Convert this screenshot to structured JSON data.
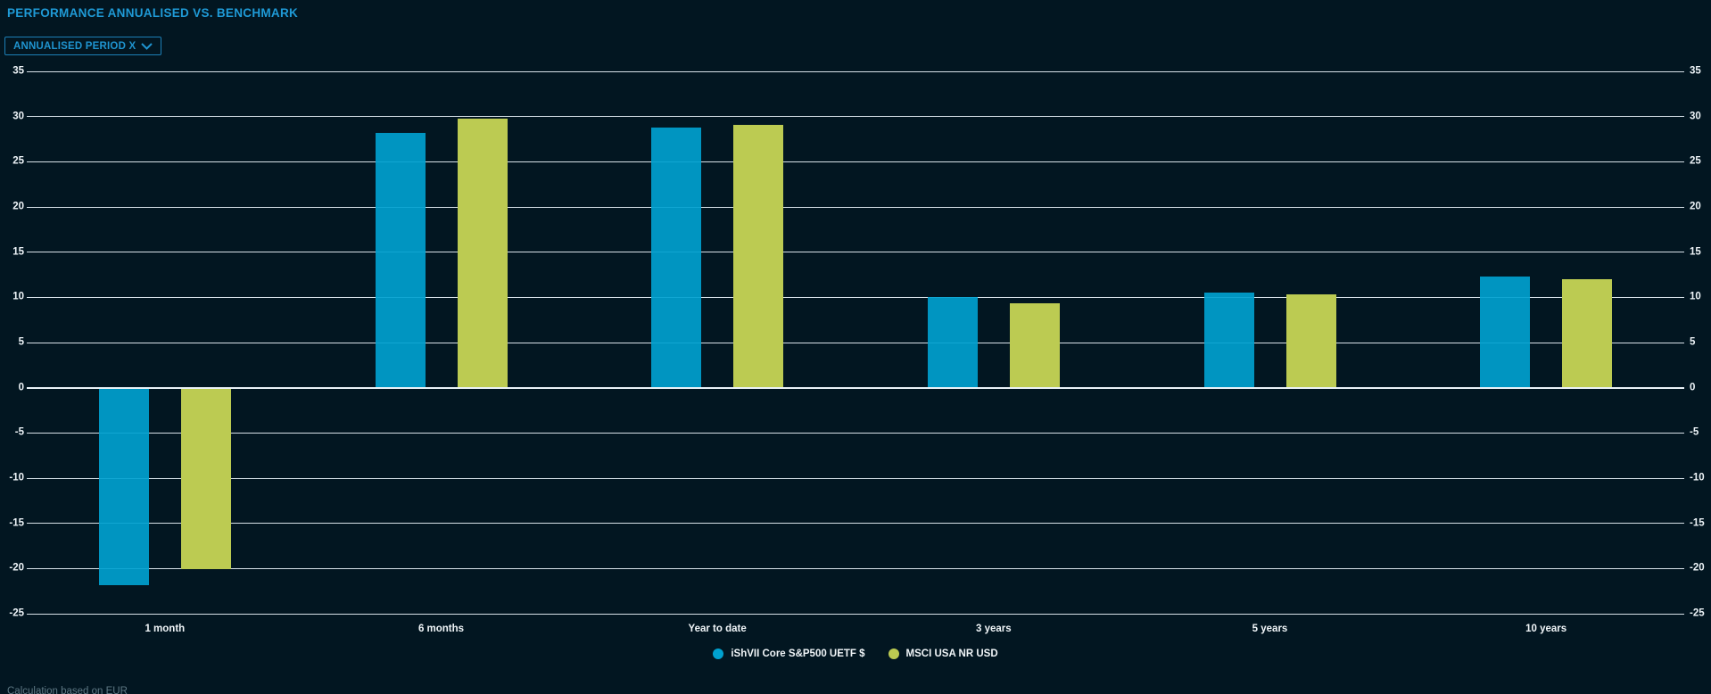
{
  "header": {
    "title": "PERFORMANCE ANNUALISED VS. BENCHMARK"
  },
  "controls": {
    "period_button": {
      "label": "ANNUALISED PERIOD X",
      "icon": "chevron-down-icon"
    }
  },
  "chart_data": {
    "type": "bar",
    "title": "PERFORMANCE ANNUALISED VS. BENCHMARK",
    "categories": [
      "1 month",
      "6 months",
      "Year to date",
      "3 years",
      "5 years",
      "10 years"
    ],
    "series": [
      {
        "name": "iShVII Core S&P500 UETF $",
        "color": "#00a1cf",
        "values": [
          -21.8,
          28.2,
          28.8,
          10.0,
          10.5,
          12.3
        ]
      },
      {
        "name": "MSCI USA NR USD",
        "color": "#bccb52",
        "values": [
          -20.1,
          29.8,
          29.1,
          9.3,
          10.3,
          12.0
        ]
      }
    ],
    "xlabel": "",
    "ylabel": "",
    "ylim": [
      -25,
      35
    ],
    "ytick_step": 5,
    "yticks": [
      35,
      30,
      25,
      20,
      15,
      10,
      5,
      0,
      -5,
      -10,
      -15,
      -20,
      -25
    ],
    "grid": true,
    "legend_position": "bottom",
    "colors": {
      "background": "#021621",
      "gridline": "#d8e2e9",
      "accent_blue": "#1f9ad6",
      "series_blue": "#00a1cf",
      "series_green": "#bccb52"
    }
  },
  "footer": {
    "note": "Calculation based on EUR"
  }
}
